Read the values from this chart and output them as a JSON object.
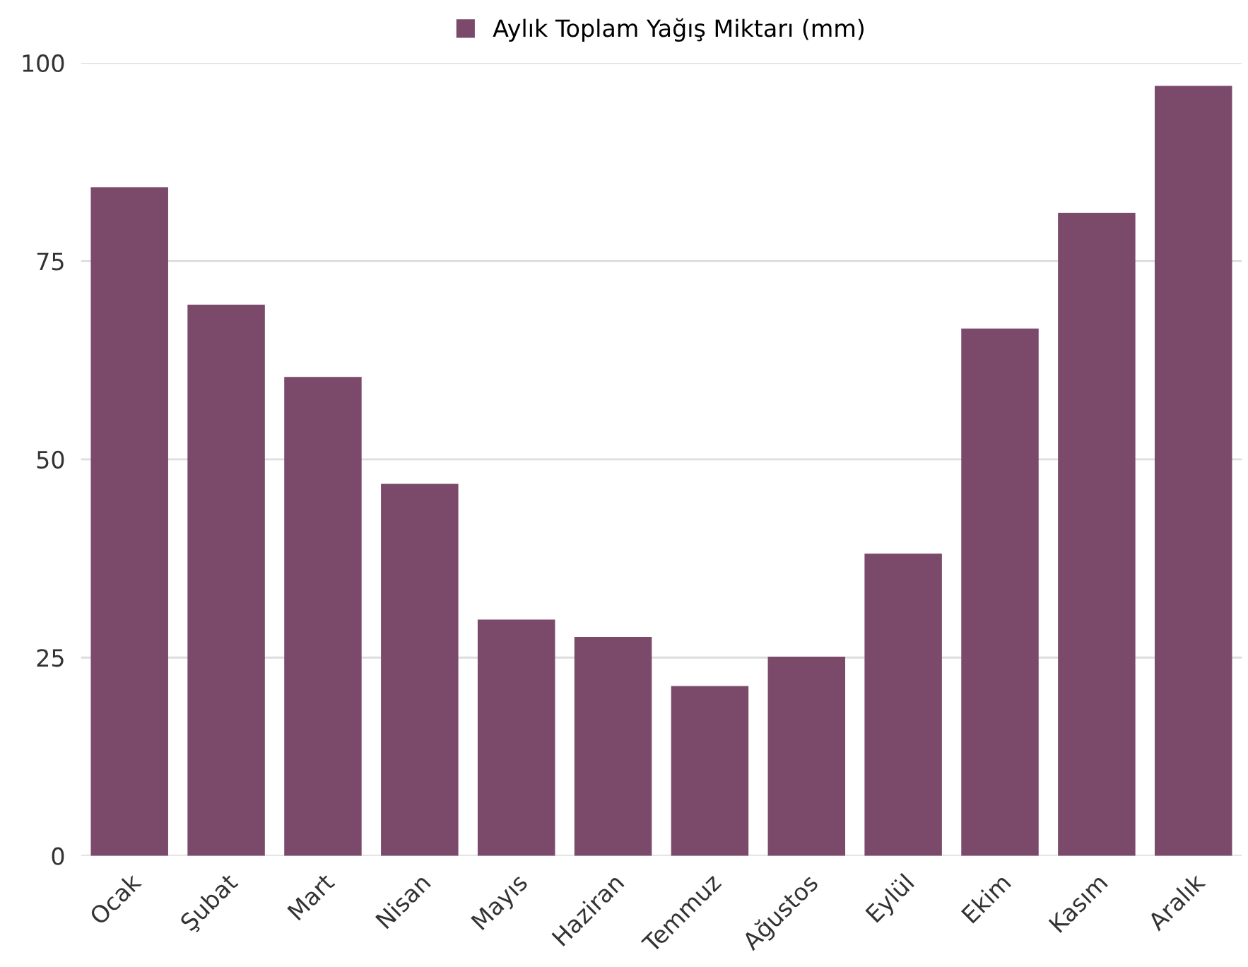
{
  "chart_data": {
    "type": "bar",
    "categories": [
      "Ocak",
      "Şubat",
      "Mart",
      "Nisan",
      "Mayıs",
      "Haziran",
      "Temmuz",
      "Ağustos",
      "Eylül",
      "Ekim",
      "Kasım",
      "Aralık"
    ],
    "series": [
      {
        "name": "Aylık Toplam Yağış Miktarı (mm)",
        "color": "#7b4a6b",
        "values": [
          84.3,
          69.5,
          60.4,
          46.9,
          29.8,
          27.6,
          21.4,
          25.1,
          38.1,
          66.5,
          81.1,
          97.1
        ]
      }
    ],
    "ylim": [
      0,
      100
    ],
    "yticks": [
      0,
      25,
      50,
      75,
      100
    ],
    "grid": "y",
    "legend": "top"
  }
}
